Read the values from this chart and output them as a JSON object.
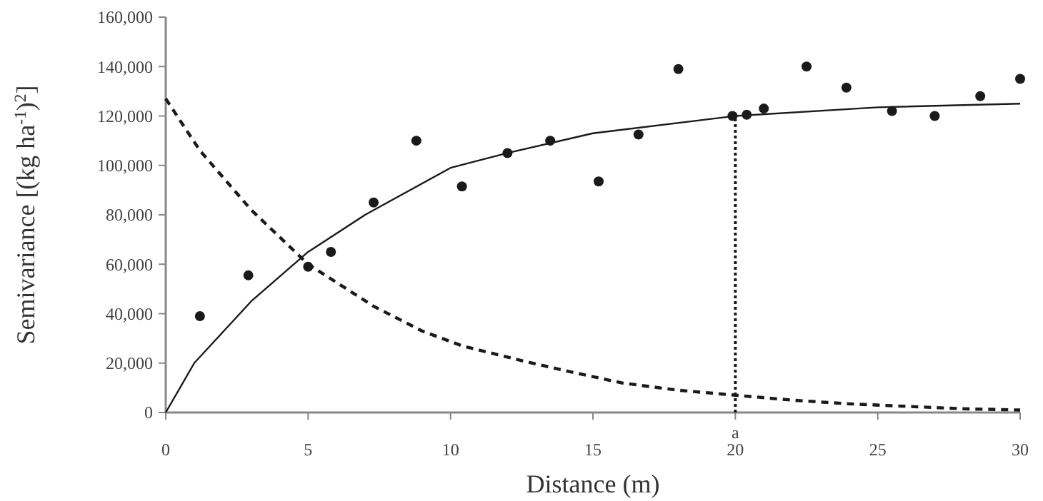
{
  "chart_data": {
    "type": "scatter",
    "xlabel": "Distance (m)",
    "ylabel": "Semivariance [(kg ha$^{-1}$)$^{2}$]",
    "xlim": [
      0,
      30
    ],
    "xticks": [
      0,
      5,
      10,
      15,
      20,
      25,
      30
    ],
    "ylim": [
      0,
      160000
    ],
    "yticks": [
      {
        "value": 0,
        "label": "0"
      },
      {
        "value": 20000,
        "label": "20,000"
      },
      {
        "value": 40000,
        "label": "40,000"
      },
      {
        "value": 60000,
        "label": "60,000"
      },
      {
        "value": 80000,
        "label": "80,000"
      },
      {
        "value": 100000,
        "label": "100,000"
      },
      {
        "value": 120000,
        "label": "120,000"
      },
      {
        "value": 140000,
        "label": "140,000"
      },
      {
        "value": 160000,
        "label": "160,000"
      }
    ],
    "series": [
      {
        "color": "#1a1a1a",
        "marker": "circle",
        "x": [
          1.2,
          2.9,
          5.0,
          5.8,
          7.3,
          8.8,
          10.4,
          12.0,
          13.5,
          15.2,
          16.6,
          18.0,
          19.9,
          20.4,
          21.0,
          22.5,
          23.9,
          25.5,
          27.0,
          28.6,
          30.0
        ],
        "values": [
          39000,
          55500,
          59000,
          65000,
          85000,
          110000,
          91500,
          105000,
          110000,
          93500,
          112500,
          139000,
          120000,
          120500,
          123000,
          140000,
          131500,
          122000,
          120000,
          128000,
          135000
        ]
      },
      {
        "type": "line",
        "color": "#1a1a1a",
        "line_style": "solid",
        "marker": "none",
        "x": [
          0,
          1,
          3,
          5,
          7,
          10,
          12,
          15,
          20,
          25,
          30
        ],
        "values": [
          0,
          20000,
          45000,
          65000,
          80000,
          99000,
          105000,
          113000,
          120000,
          123500,
          125000
        ]
      },
      {
        "type": "line",
        "color": "#1a1a1a",
        "line_style": "dashed",
        "marker": "none",
        "x": [
          0,
          1.2,
          3,
          5,
          7.3,
          9,
          10.4,
          12.5,
          14,
          16,
          18,
          20,
          22,
          24,
          26,
          28,
          30
        ],
        "values": [
          127000,
          106000,
          82000,
          60000,
          43000,
          33000,
          27000,
          21000,
          17000,
          12000,
          9000,
          7000,
          5000,
          3500,
          2500,
          1500,
          1000
        ]
      }
    ],
    "ref_lines": [
      {
        "axis": "x",
        "value": 20,
        "label": "a",
        "color": "#1a1a1a",
        "line_style": "dotted"
      }
    ]
  }
}
